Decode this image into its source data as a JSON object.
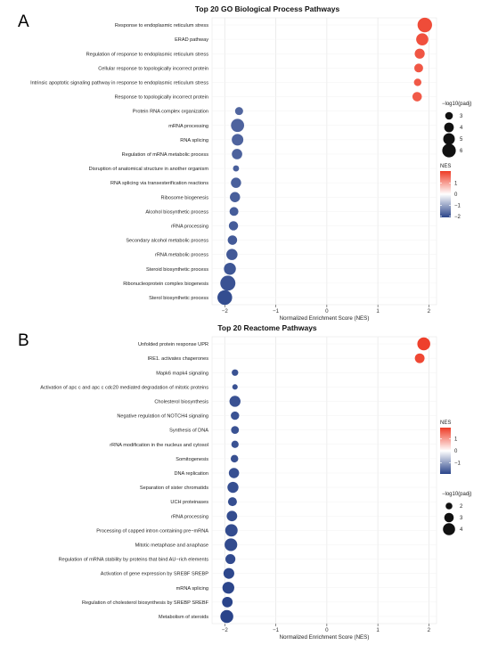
{
  "chart_data": [
    {
      "type": "scatter",
      "panel_label": "A",
      "title": "Top 20 GO Biological Process Pathways",
      "xlabel": "Normalized Enrichment Score (NES)",
      "xticks": [
        -2,
        -1,
        0,
        1,
        2
      ],
      "xlim": [
        -2.25,
        2.15
      ],
      "size_legend_title": "−log10(padj)",
      "size_legend_values": [
        3,
        4,
        5,
        6
      ],
      "color_legend_title": "NES",
      "color_legend_ticks": [
        1,
        0,
        -1,
        -2
      ],
      "color_range": [
        -2.1,
        2.1
      ],
      "categories": [
        "Response to endoplasmic reticulum stress",
        "ERAD pathway",
        "Regulation of response to endoplasmic reticulum stress",
        "Cellular response to topologically incorrect protein",
        "Intrinsic apoptotic signaling pathway in response to endoplasmic reticulum stress",
        "Response to topologically incorrect protein",
        "Protein RNA complex organization",
        "mRNA processing",
        "RNA splicing",
        "Regulation of mRNA metabolic process",
        "Disruption of anatomical structure in another organism",
        "RNA splicing via transesterification reactions",
        "Ribosome biogenesis",
        "Alcohol biosynthetic process",
        "rRNA processing",
        "Secondary alcohol metabolic process",
        "rRNA metabolic process",
        "Steroid biosynthetic process",
        "Ribonucleoprotein complex biogenesis",
        "Sterol biosynthetic process"
      ],
      "nes": [
        1.92,
        1.87,
        1.82,
        1.8,
        1.78,
        1.77,
        -1.72,
        -1.75,
        -1.75,
        -1.76,
        -1.78,
        -1.78,
        -1.8,
        -1.82,
        -1.83,
        -1.85,
        -1.86,
        -1.9,
        -1.94,
        -2.0
      ],
      "neg_log10_padj": [
        6.5,
        5.3,
        4.2,
        3.6,
        2.9,
        3.9,
        3.2,
        5.8,
        5.0,
        4.4,
        2.2,
        4.3,
        4.3,
        3.6,
        3.8,
        3.9,
        4.8,
        5.2,
        6.8,
        6.6
      ]
    },
    {
      "type": "scatter",
      "panel_label": "B",
      "title": "Top 20 Reactome Pathways",
      "xlabel": "Normalized Enrichment Score (NES)",
      "xticks": [
        -2,
        -1,
        0,
        1,
        2
      ],
      "xlim": [
        -2.25,
        2.15
      ],
      "size_legend_title": "−log10(padj)",
      "size_legend_values": [
        2,
        3,
        4
      ],
      "color_legend_title": "NES",
      "color_legend_ticks": [
        1,
        0,
        -1
      ],
      "color_range": [
        -1.95,
        1.95
      ],
      "categories": [
        "Unfolded protein response UPR",
        "IRE1. activates chaperones",
        "Mapk6 mapk4 signaling",
        "Activation of apc c and apc c cdc20 mediated degradation of mitotic proteins",
        "Cholesterol biosynthesis",
        "Negative regulation of NOTCH4 signaling",
        "Synthesis of DNA",
        "rRNA modification in the nucleus and cytosol",
        "Somitogenesis",
        "DNA replication",
        "Separation of sister chromatids",
        "UCH proteinases",
        "rRNA processing",
        "Processing of capped intron containing pre−mRNA",
        "Mitotic metaphase and anaphase",
        "Regulation of mRNA stability by proteins that bind AU−rich elements",
        "Activation of gene expression by SREBF SREBP",
        "mRNA splicing",
        "Regulation of cholesterol biosynthesis by SREBP SREBF",
        "Metabolism of steroids"
      ],
      "nes": [
        1.9,
        1.82,
        -1.8,
        -1.8,
        -1.8,
        -1.8,
        -1.8,
        -1.8,
        -1.81,
        -1.82,
        -1.84,
        -1.85,
        -1.86,
        -1.87,
        -1.88,
        -1.89,
        -1.92,
        -1.93,
        -1.95,
        -1.96
      ],
      "neg_log10_padj": [
        4.3,
        3.1,
        1.9,
        1.5,
        3.6,
        2.6,
        2.4,
        2.2,
        2.3,
        3.3,
        3.6,
        2.8,
        3.4,
        4.1,
        4.2,
        3.2,
        3.5,
        3.9,
        3.4,
        4.3
      ]
    }
  ]
}
